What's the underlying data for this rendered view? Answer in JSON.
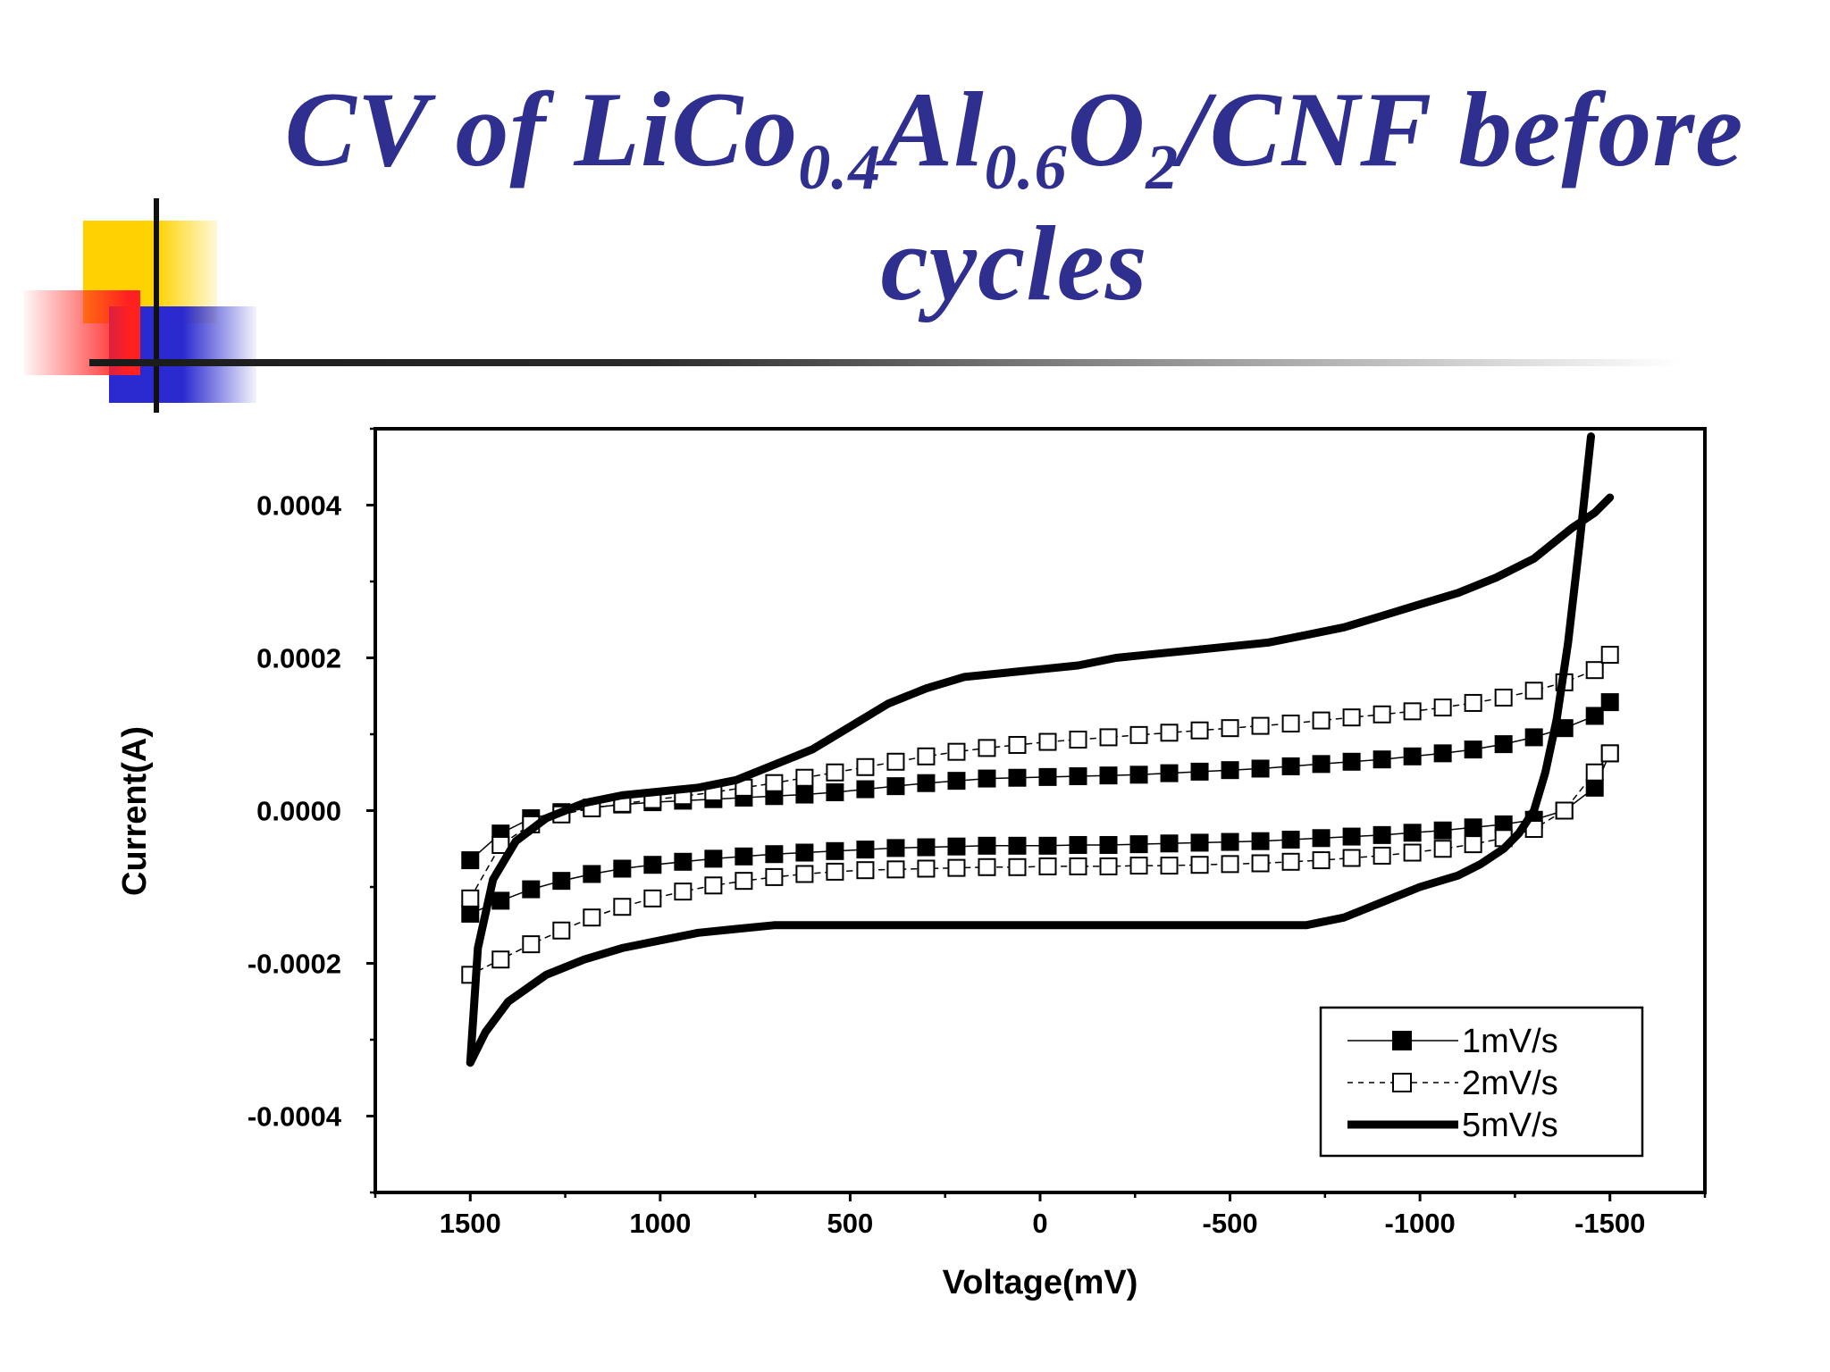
{
  "slide": {
    "title_parts": [
      "CV of LiCo",
      "0.4",
      "Al",
      "0.6",
      "O",
      "2",
      "/CNF before cycles"
    ]
  },
  "chart_data": {
    "type": "line",
    "xlabel": "Voltage(mV)",
    "ylabel": "Current(A)",
    "xlim": [
      1750,
      -1750
    ],
    "ylim": [
      -0.0005,
      0.0005
    ],
    "x_axis_reversed": true,
    "x_ticks": [
      1500,
      1000,
      500,
      0,
      -500,
      -1000,
      -1500
    ],
    "x_tick_labels": [
      "1500",
      "1000",
      "500",
      "0",
      "-500",
      "-1000",
      "-1500"
    ],
    "y_ticks": [
      0.0004,
      0.0002,
      0.0,
      -0.0002,
      -0.0004
    ],
    "y_tick_labels": [
      "0.0004",
      "0.0002",
      "0.0000",
      "-0.0002",
      "-0.0004"
    ],
    "legend_position": "bottom-right",
    "grid": false,
    "series": [
      {
        "name": "1mV/s",
        "marker": "filled-square",
        "line_style": "solid",
        "anodic": {
          "x": [
            1500,
            1420,
            1340,
            1260,
            1180,
            1100,
            1020,
            940,
            860,
            780,
            700,
            620,
            540,
            460,
            380,
            300,
            220,
            140,
            60,
            -20,
            -100,
            -180,
            -260,
            -340,
            -420,
            -500,
            -580,
            -660,
            -740,
            -820,
            -900,
            -980,
            -1060,
            -1140,
            -1220,
            -1300,
            -1380,
            -1460,
            -1500
          ],
          "y": [
            -6.5e-05,
            -3e-05,
            -1e-05,
            -2e-06,
            4e-06,
            8e-06,
            1.1e-05,
            1.3e-05,
            1.5e-05,
            1.7e-05,
            1.9e-05,
            2.1e-05,
            2.4e-05,
            2.8e-05,
            3.2e-05,
            3.6e-05,
            3.9e-05,
            4.2e-05,
            4.3e-05,
            4.4e-05,
            4.5e-05,
            4.6e-05,
            4.7e-05,
            4.9e-05,
            5.1e-05,
            5.3e-05,
            5.5e-05,
            5.8e-05,
            6.1e-05,
            6.4e-05,
            6.7e-05,
            7.1e-05,
            7.5e-05,
            8e-05,
            8.7e-05,
            9.6e-05,
            0.000108,
            0.000124,
            0.000142
          ]
        },
        "cathodic": {
          "x": [
            -1500,
            -1460,
            -1380,
            -1300,
            -1220,
            -1140,
            -1060,
            -980,
            -900,
            -820,
            -740,
            -660,
            -580,
            -500,
            -420,
            -340,
            -260,
            -180,
            -100,
            -20,
            60,
            140,
            220,
            300,
            380,
            460,
            540,
            620,
            700,
            780,
            860,
            940,
            1020,
            1100,
            1180,
            1260,
            1340,
            1420,
            1500
          ],
          "y": [
            7.5e-05,
            3e-05,
            0.0,
            -1.2e-05,
            -1.8e-05,
            -2.2e-05,
            -2.6e-05,
            -2.9e-05,
            -3.2e-05,
            -3.4e-05,
            -3.6e-05,
            -3.8e-05,
            -4e-05,
            -4.1e-05,
            -4.2e-05,
            -4.3e-05,
            -4.4e-05,
            -4.5e-05,
            -4.5e-05,
            -4.6e-05,
            -4.6e-05,
            -4.6e-05,
            -4.7e-05,
            -4.8e-05,
            -4.9e-05,
            -5.1e-05,
            -5.3e-05,
            -5.5e-05,
            -5.7e-05,
            -6e-05,
            -6.3e-05,
            -6.7e-05,
            -7.1e-05,
            -7.6e-05,
            -8.3e-05,
            -9.2e-05,
            -0.000103,
            -0.000118,
            -0.000135
          ]
        }
      },
      {
        "name": "2mV/s",
        "marker": "open-square",
        "line_style": "dashed",
        "anodic": {
          "x": [
            1500,
            1420,
            1340,
            1260,
            1180,
            1100,
            1020,
            940,
            860,
            780,
            700,
            620,
            540,
            460,
            380,
            300,
            220,
            140,
            60,
            -20,
            -100,
            -180,
            -260,
            -340,
            -420,
            -500,
            -580,
            -660,
            -740,
            -820,
            -900,
            -980,
            -1060,
            -1140,
            -1220,
            -1300,
            -1380,
            -1460,
            -1500
          ],
          "y": [
            -0.000115,
            -4.5e-05,
            -1.8e-05,
            -5e-06,
            3e-06,
            9e-06,
            1.4e-05,
            1.9e-05,
            2.4e-05,
            3e-05,
            3.6e-05,
            4.3e-05,
            5e-05,
            5.7e-05,
            6.4e-05,
            7.1e-05,
            7.7e-05,
            8.2e-05,
            8.6e-05,
            9e-05,
            9.3e-05,
            9.6e-05,
            9.9e-05,
            0.000102,
            0.000105,
            0.000108,
            0.000111,
            0.000114,
            0.000118,
            0.000122,
            0.000126,
            0.00013,
            0.000135,
            0.000141,
            0.000148,
            0.000157,
            0.000168,
            0.000184,
            0.000204
          ]
        },
        "cathodic": {
          "x": [
            -1500,
            -1460,
            -1380,
            -1300,
            -1220,
            -1140,
            -1060,
            -980,
            -900,
            -820,
            -740,
            -660,
            -580,
            -500,
            -420,
            -340,
            -260,
            -180,
            -100,
            -20,
            60,
            140,
            220,
            300,
            380,
            460,
            540,
            620,
            700,
            780,
            860,
            940,
            1020,
            1100,
            1180,
            1260,
            1340,
            1420,
            1500
          ],
          "y": [
            7.5e-05,
            5e-05,
            0.0,
            -2.4e-05,
            -3.6e-05,
            -4.4e-05,
            -5e-05,
            -5.5e-05,
            -5.9e-05,
            -6.2e-05,
            -6.5e-05,
            -6.7e-05,
            -6.9e-05,
            -7e-05,
            -7.1e-05,
            -7.2e-05,
            -7.2e-05,
            -7.3e-05,
            -7.3e-05,
            -7.3e-05,
            -7.4e-05,
            -7.4e-05,
            -7.5e-05,
            -7.6e-05,
            -7.7e-05,
            -7.8e-05,
            -8e-05,
            -8.3e-05,
            -8.7e-05,
            -9.2e-05,
            -9.8e-05,
            -0.000106,
            -0.000115,
            -0.000126,
            -0.00014,
            -0.000157,
            -0.000175,
            -0.000195,
            -0.000215
          ]
        }
      },
      {
        "name": "5mV/s",
        "marker": "none",
        "line_style": "thick-solid",
        "anodic": {
          "x": [
            1500,
            1480,
            1440,
            1380,
            1300,
            1200,
            1100,
            1000,
            900,
            800,
            700,
            600,
            500,
            400,
            300,
            200,
            100,
            0,
            -100,
            -200,
            -300,
            -400,
            -500,
            -600,
            -700,
            -800,
            -900,
            -1000,
            -1100,
            -1200,
            -1300,
            -1400,
            -1460,
            -1500
          ],
          "y": [
            -0.00033,
            -0.00018,
            -9e-05,
            -4e-05,
            -1e-05,
            1e-05,
            2e-05,
            2.5e-05,
            3e-05,
            4e-05,
            6e-05,
            8e-05,
            0.00011,
            0.00014,
            0.00016,
            0.000175,
            0.00018,
            0.000185,
            0.00019,
            0.0002,
            0.000205,
            0.00021,
            0.000215,
            0.00022,
            0.00023,
            0.00024,
            0.000255,
            0.00027,
            0.000285,
            0.000305,
            0.00033,
            0.00037,
            0.00039,
            0.00041
          ]
        },
        "cathodic": {
          "x": [
            -1450,
            -1420,
            -1390,
            -1360,
            -1330,
            -1300,
            -1260,
            -1220,
            -1160,
            -1100,
            -1000,
            -900,
            -800,
            -700,
            -600,
            -500,
            -400,
            -300,
            -200,
            -100,
            0,
            100,
            200,
            300,
            400,
            500,
            600,
            700,
            800,
            900,
            1000,
            1100,
            1200,
            1300,
            1400,
            1460,
            1500
          ],
          "y": [
            0.00049,
            0.00035,
            0.00022,
            0.00012,
            5e-05,
            0.0,
            -3e-05,
            -5e-05,
            -7e-05,
            -8.5e-05,
            -0.0001,
            -0.00012,
            -0.00014,
            -0.00015,
            -0.00015,
            -0.00015,
            -0.00015,
            -0.00015,
            -0.00015,
            -0.00015,
            -0.00015,
            -0.00015,
            -0.00015,
            -0.00015,
            -0.00015,
            -0.00015,
            -0.00015,
            -0.00015,
            -0.000155,
            -0.00016,
            -0.00017,
            -0.00018,
            -0.000195,
            -0.000215,
            -0.00025,
            -0.00029,
            -0.00033
          ]
        }
      }
    ]
  }
}
